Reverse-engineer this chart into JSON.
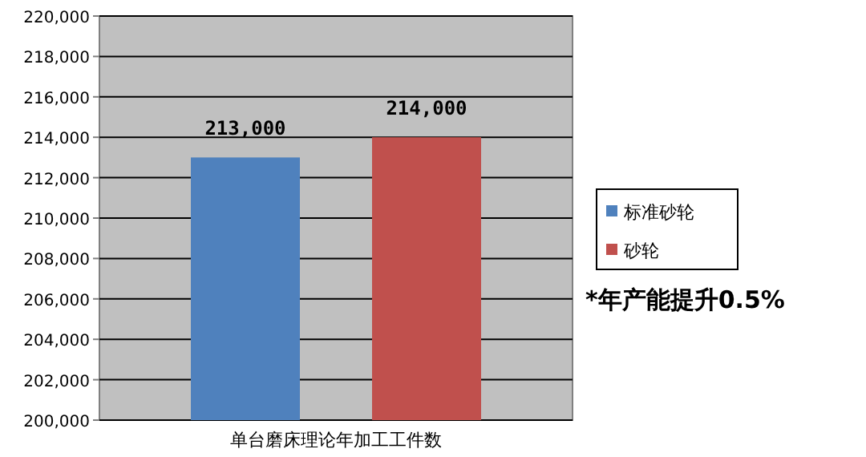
{
  "chart_data": {
    "type": "bar",
    "categories": [
      "单台磨床理论年加工工件数"
    ],
    "series": [
      {
        "name": "标准砂轮",
        "color": "#4f81bd",
        "values": [
          213000
        ],
        "value_labels": [
          "213,000"
        ]
      },
      {
        "name": "砂轮",
        "color": "#c0504d",
        "values": [
          214000
        ],
        "value_labels": [
          "214,000"
        ]
      }
    ],
    "ylim": [
      200000,
      220000
    ],
    "yticks": [
      {
        "value": 200000,
        "label": "200,000"
      },
      {
        "value": 202000,
        "label": "202,000"
      },
      {
        "value": 204000,
        "label": "204,000"
      },
      {
        "value": 206000,
        "label": "206,000"
      },
      {
        "value": 208000,
        "label": "208,000"
      },
      {
        "value": 210000,
        "label": "210,000"
      },
      {
        "value": 212000,
        "label": "212,000"
      },
      {
        "value": 214000,
        "label": "214,000"
      },
      {
        "value": 216000,
        "label": "216,000"
      },
      {
        "value": 218000,
        "label": "218,000"
      },
      {
        "value": 220000,
        "label": "220,000"
      }
    ],
    "grid": "y",
    "legend": "right",
    "annotations": [
      "*年产能提升0.5%"
    ]
  }
}
